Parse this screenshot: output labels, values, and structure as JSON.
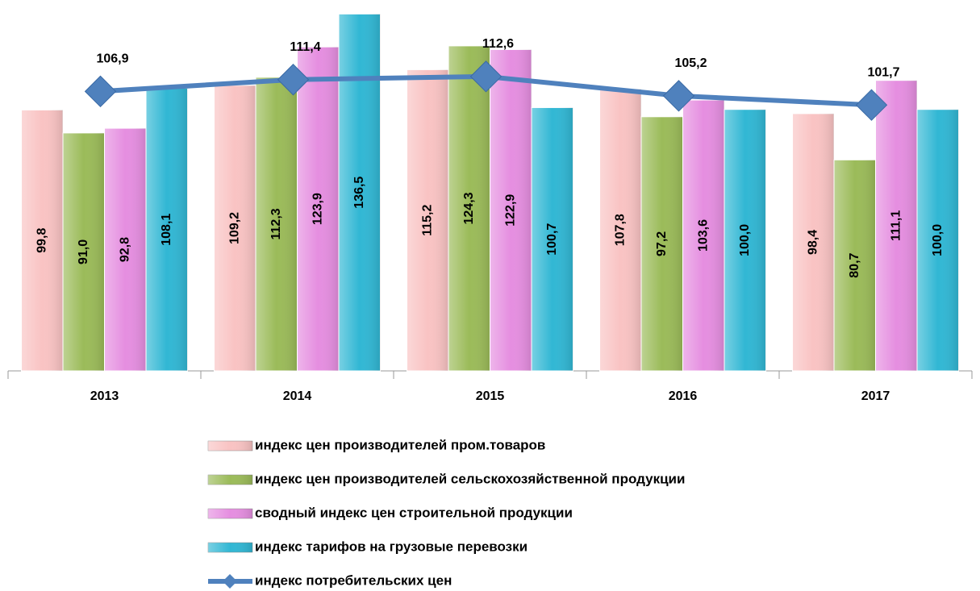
{
  "chart_data": {
    "type": "bar",
    "categories": [
      "2013",
      "2014",
      "2015",
      "2016",
      "2017"
    ],
    "ylim": [
      0,
      140
    ],
    "series": [
      {
        "name": "индекс цен производителей пром.товаров",
        "color": "#f9c3c3",
        "values": [
          99.8,
          109.2,
          115.2,
          107.8,
          98.4
        ],
        "value_labels": [
          "99,8",
          "109,2",
          "115,2",
          "107,8",
          "98,4"
        ]
      },
      {
        "name": "индекс цен производителей сельскохозяйственной продукции",
        "color": "#9bbb59",
        "values": [
          91.0,
          112.3,
          124.3,
          97.2,
          80.7
        ],
        "value_labels": [
          "91,0",
          "112,3",
          "124,3",
          "97,2",
          "80,7"
        ]
      },
      {
        "name": "сводный индекс цен строительной продукции",
        "color": "#e58ee0",
        "values": [
          92.8,
          123.9,
          122.9,
          103.6,
          111.1
        ],
        "value_labels": [
          "92,8",
          "123,9",
          "122,9",
          "103,6",
          "111,1"
        ]
      },
      {
        "name": "индекс тарифов на грузовые перевозки",
        "color": "#31b7d4",
        "values": [
          108.1,
          136.5,
          100.7,
          100.0,
          100.0
        ],
        "value_labels": [
          "108,1",
          "136,5",
          "100,7",
          "100,0",
          "100,0"
        ]
      },
      {
        "name": "индекс потребительских цен",
        "type": "line",
        "color": "#4f81bd",
        "values": [
          106.9,
          111.4,
          112.6,
          105.2,
          101.7
        ],
        "value_labels": [
          "106,9",
          "111,4",
          "112,6",
          "105,2",
          "101,7"
        ]
      }
    ]
  }
}
